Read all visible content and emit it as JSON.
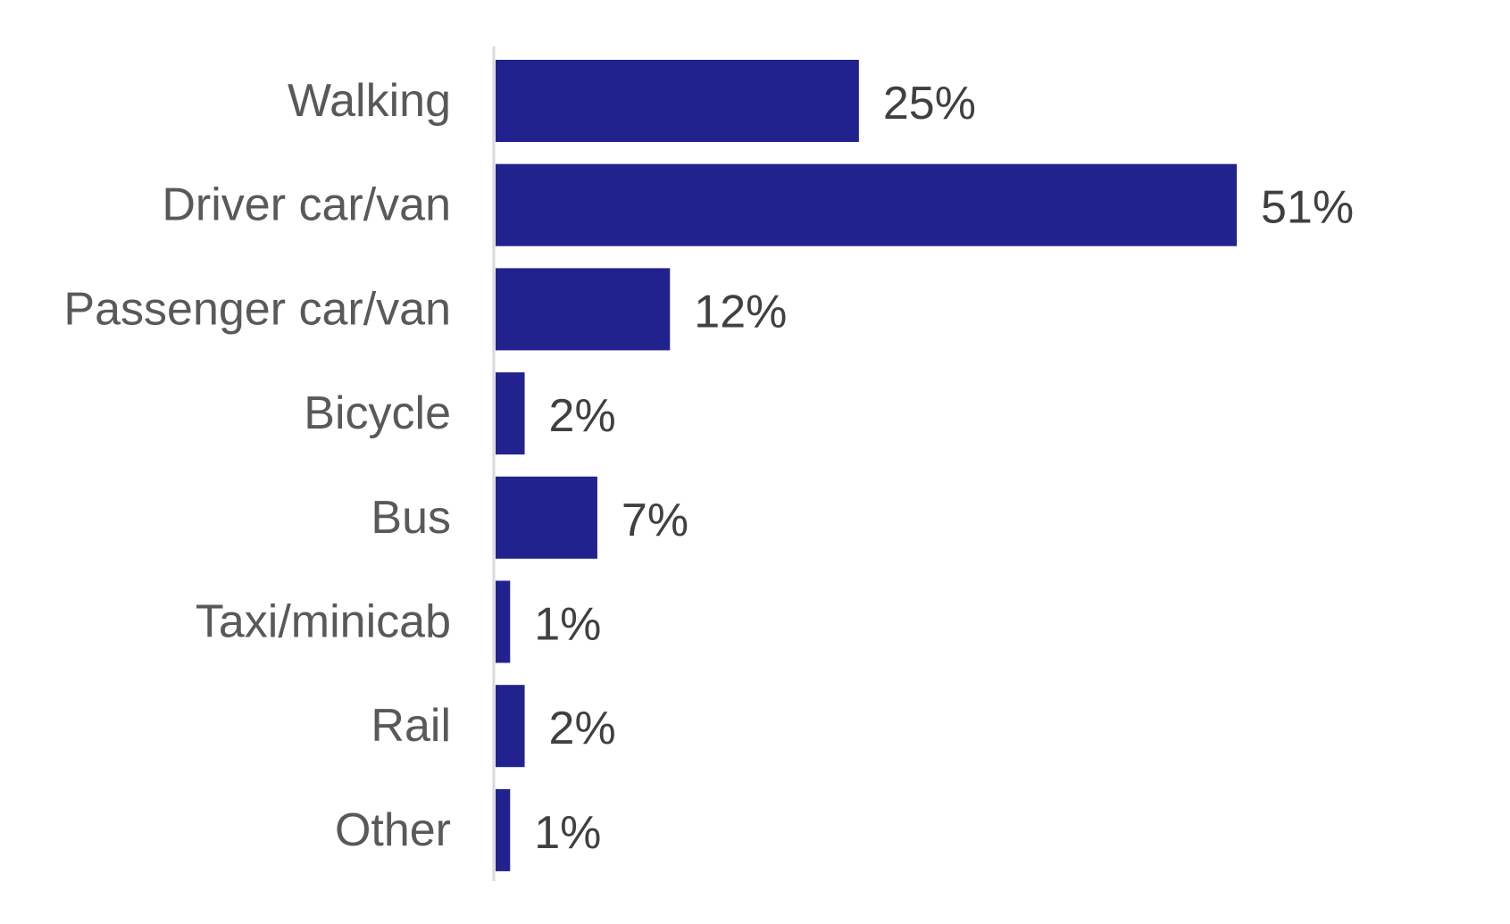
{
  "chart_data": {
    "type": "bar",
    "orientation": "horizontal",
    "categories": [
      "Walking",
      "Driver car/van",
      "Passenger car/van",
      "Bicycle",
      "Bus",
      "Taxi/minicab",
      "Rail",
      "Other"
    ],
    "values": [
      25,
      51,
      12,
      2,
      7,
      1,
      2,
      1
    ],
    "value_labels": [
      "25%",
      "51%",
      "12%",
      "2%",
      "7%",
      "1%",
      "2%",
      "1%"
    ],
    "unit": "%",
    "xlim": [
      0,
      51
    ],
    "grid": false,
    "legend": "none",
    "bar_color": "#22228f",
    "axis_color": "#d9d9d9"
  }
}
